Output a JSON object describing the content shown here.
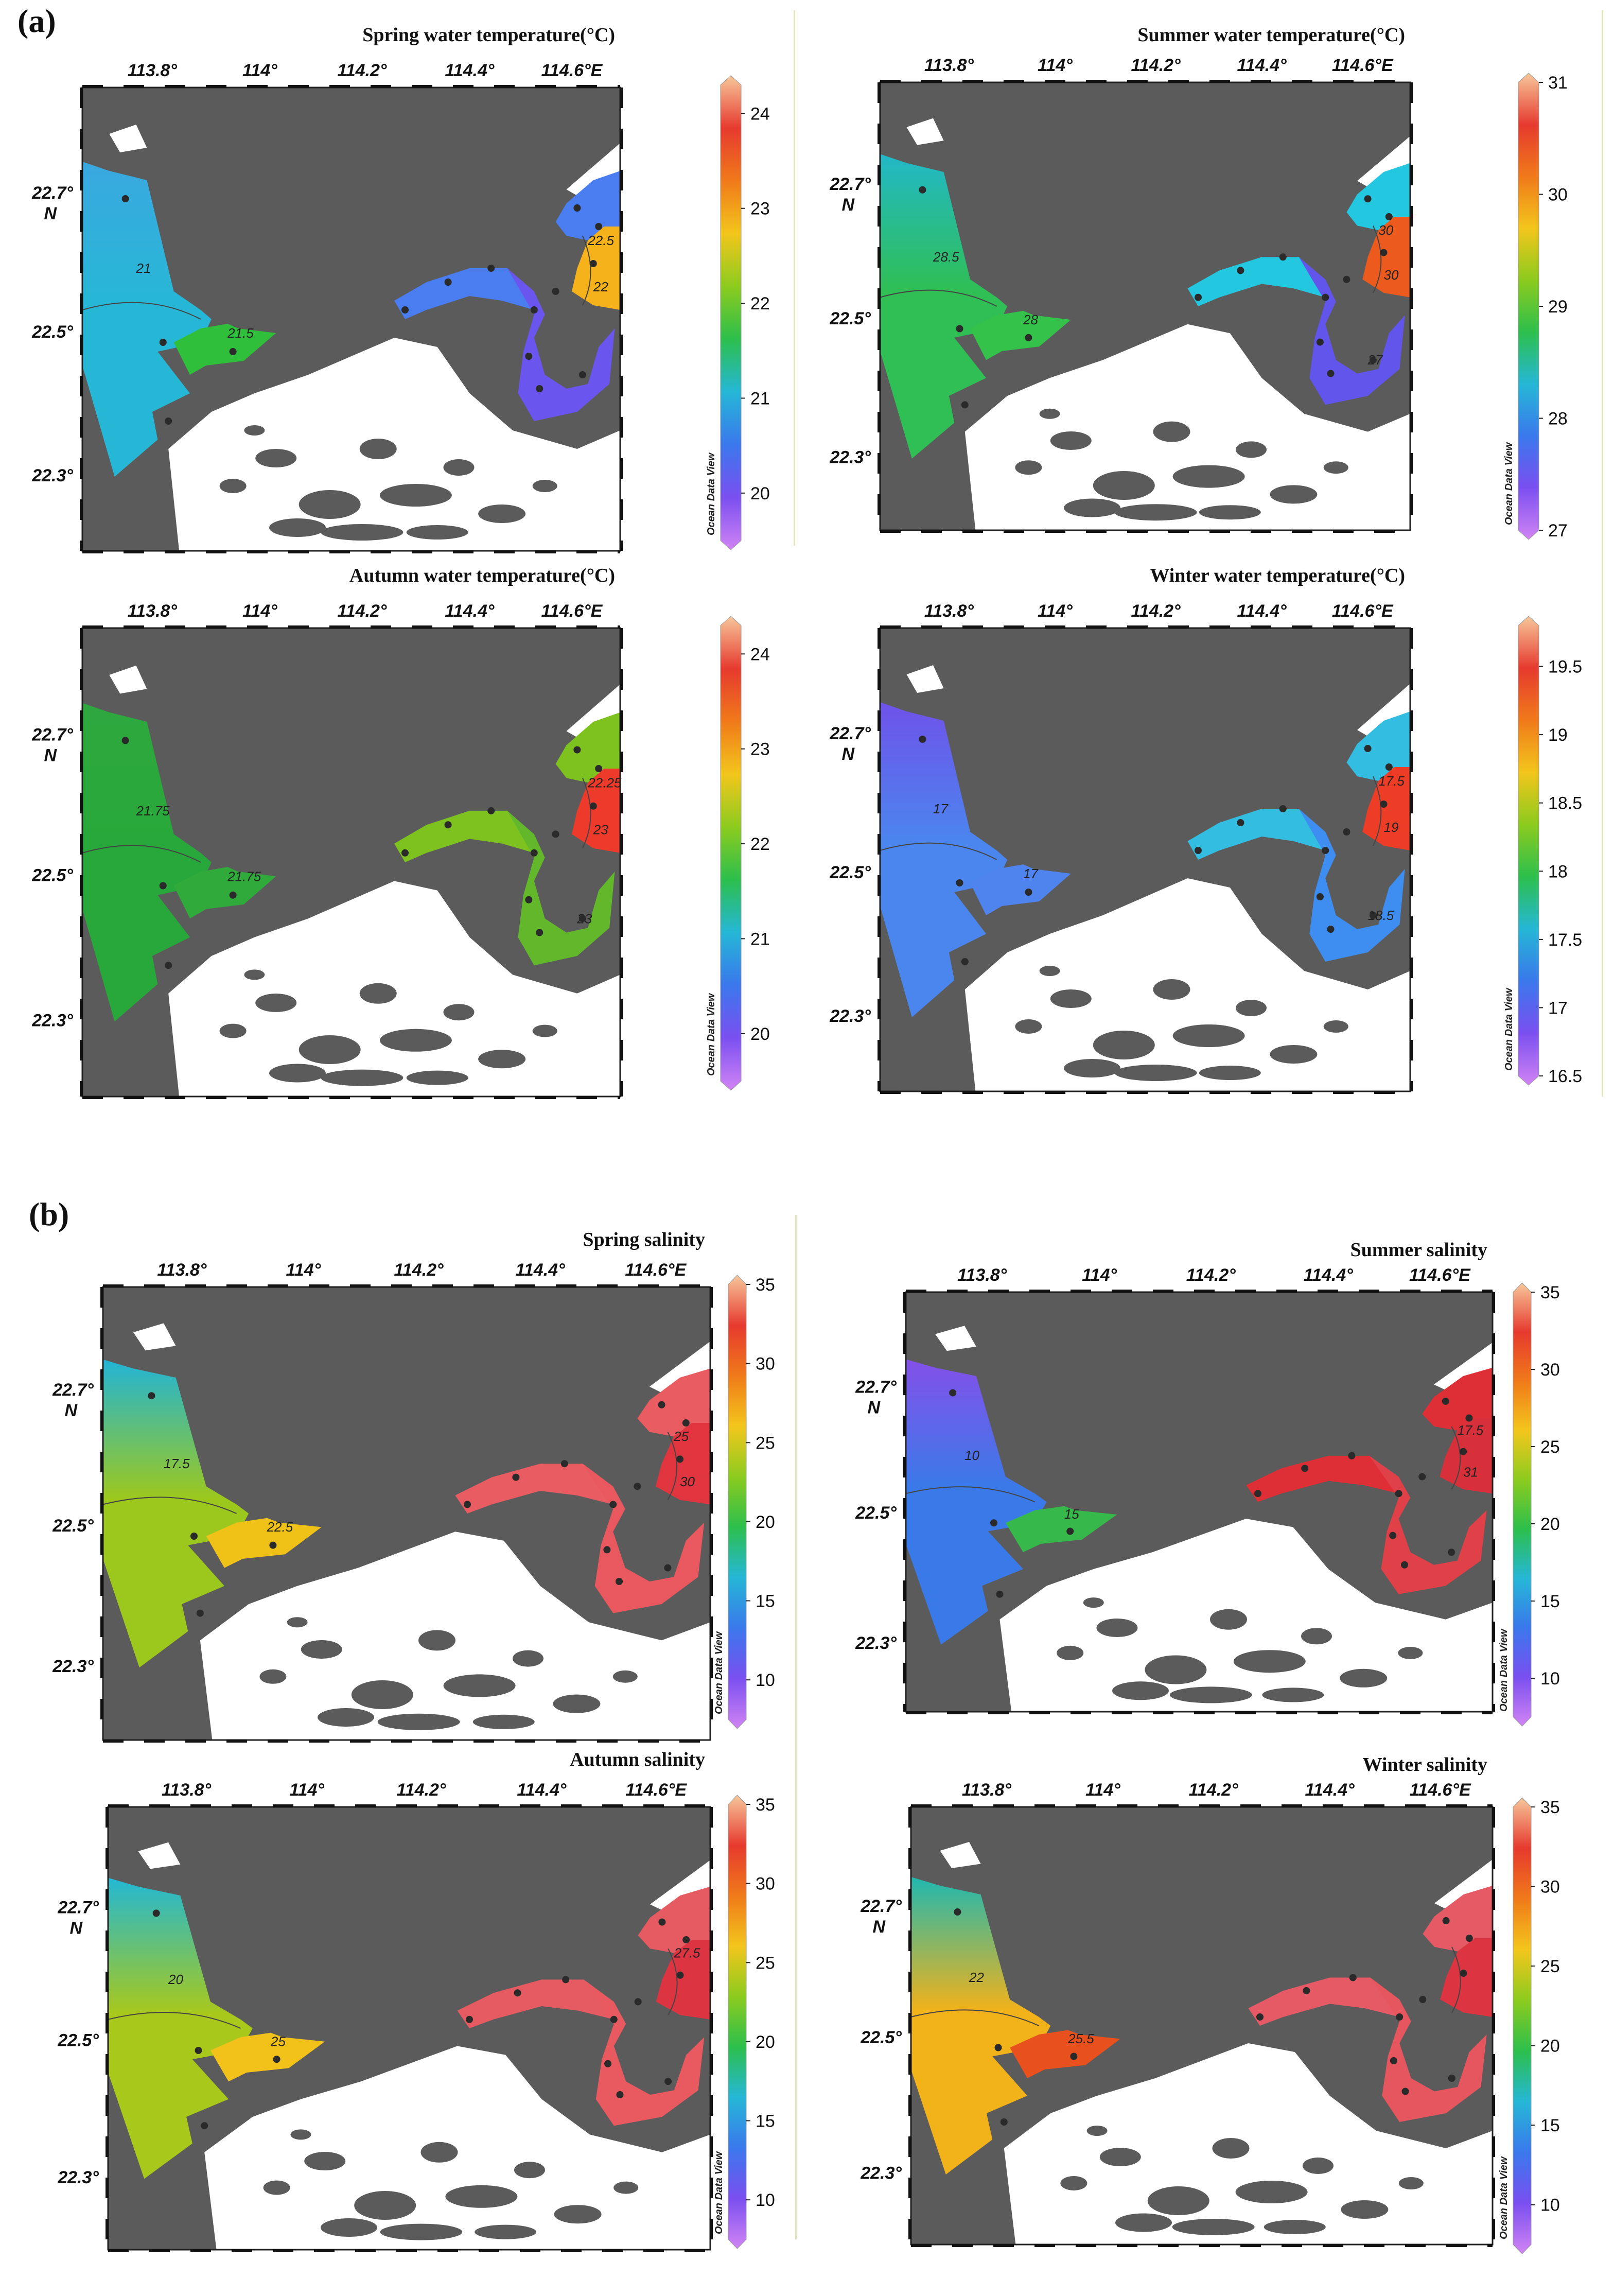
{
  "figure": {
    "part_labels": [
      "(a)",
      "(b)"
    ]
  },
  "axes": {
    "lon_ticks": [
      "113.8°",
      "114°",
      "114.2°",
      "114.4°",
      "114.6°E"
    ],
    "lat_ticks": [
      "22.7°",
      "22.5°",
      "22.3°"
    ],
    "lat_unit": "N",
    "credit": "Ocean Data View"
  },
  "panels": [
    {
      "title": "Spring water temperature(°C)",
      "colorbar": {
        "ticks": [
          "24",
          "23",
          "22",
          "21",
          "20"
        ],
        "min": 19.5,
        "max": 24.3
      },
      "colors": {
        "west": "#27b7d6",
        "westlow": "#3aa8e0",
        "bay": "#2fbf3a",
        "mirs": "#4a7df0",
        "daya": "#6a55ee",
        "hot": "#f5b21a"
      },
      "contour_labels": [
        "21",
        "21.5",
        "22.5",
        "22"
      ]
    },
    {
      "title": "Summer water temperature(°C)",
      "colorbar": {
        "ticks": [
          "31",
          "30",
          "29",
          "28",
          "27"
        ],
        "min": 27,
        "max": 31
      },
      "colors": {
        "west": "#2fbf55",
        "westlow": "#22b8c8",
        "bay": "#34c24a",
        "mirs": "#24c7e0",
        "daya": "#6255ec",
        "hot": "#ec5a1e"
      },
      "contour_labels": [
        "28.5",
        "28",
        "30",
        "30",
        "27"
      ]
    },
    {
      "title": "Autumn water temperature(°C)",
      "colorbar": {
        "ticks": [
          "24",
          "23",
          "22",
          "21",
          "20"
        ],
        "min": 19.5,
        "max": 24.3
      },
      "colors": {
        "west": "#28a83a",
        "westlow": "#2ea83e",
        "bay": "#30ab3b",
        "mirs": "#7dc21e",
        "daya": "#62b82a",
        "hot": "#ee3a2a"
      },
      "contour_labels": [
        "21.75",
        "21.75",
        "22.25",
        "23",
        "23"
      ]
    },
    {
      "title": "Winter water temperature(°C)",
      "colorbar": {
        "ticks": [
          "19.5",
          "19",
          "18.5",
          "18",
          "17.5",
          "17",
          "16.5"
        ],
        "min": 16.5,
        "max": 19.8
      },
      "colors": {
        "west": "#4a86ee",
        "westlow": "#6f52ea",
        "bay": "#4f84ee",
        "mirs": "#33bde0",
        "daya": "#3d8ef0",
        "hot": "#ee3d26"
      },
      "contour_labels": [
        "17",
        "17",
        "17.5",
        "19",
        "18.5"
      ]
    },
    {
      "title": "Spring salinity",
      "colorbar": {
        "ticks": [
          "35",
          "30",
          "25",
          "20",
          "15",
          "10"
        ],
        "min": 7.5,
        "max": 35
      },
      "colors": {
        "west": "#9cc81e",
        "westlow": "#22b4d6",
        "bay": "#f0c218",
        "mirs": "#e85c62",
        "daya": "#e8585e",
        "hot": "#e0353e"
      },
      "contour_labels": [
        "17.5",
        "22.5",
        "25",
        "30"
      ]
    },
    {
      "title": "Summer salinity",
      "colorbar": {
        "ticks": [
          "35",
          "30",
          "25",
          "20",
          "15",
          "10"
        ],
        "min": 7.5,
        "max": 35
      },
      "colors": {
        "west": "#3a7ae8",
        "westlow": "#8450e8",
        "bay": "#36b84a",
        "mirs": "#dd2f35",
        "daya": "#e04048",
        "hot": "#d8303a"
      },
      "contour_labels": [
        "10",
        "15",
        "17.5",
        "31"
      ]
    },
    {
      "title": "Autumn salinity",
      "colorbar": {
        "ticks": [
          "35",
          "30",
          "25",
          "20",
          "15",
          "10"
        ],
        "min": 7.5,
        "max": 35
      },
      "colors": {
        "west": "#a8c81c",
        "westlow": "#22b8d4",
        "bay": "#f2c21a",
        "mirs": "#e65a62",
        "daya": "#e85a60",
        "hot": "#dc3440"
      },
      "contour_labels": [
        "20",
        "25",
        "27.5"
      ]
    },
    {
      "title": "Winter salinity",
      "colorbar": {
        "ticks": [
          "35",
          "30",
          "25",
          "20",
          "15",
          "10"
        ],
        "min": 7.5,
        "max": 35
      },
      "colors": {
        "west": "#f2b21a",
        "westlow": "#20b8b0",
        "bay": "#e8501e",
        "mirs": "#e65a66",
        "daya": "#e6565e",
        "hot": "#dc3440"
      },
      "contour_labels": [
        "22",
        "25.5"
      ]
    }
  ]
}
